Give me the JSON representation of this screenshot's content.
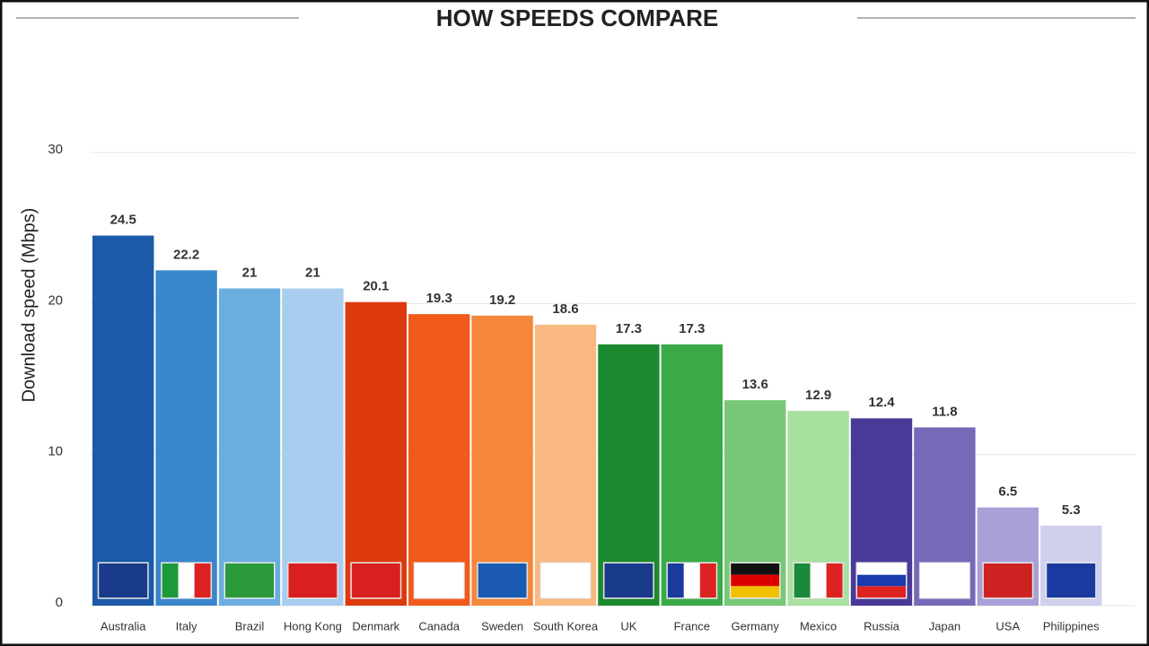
{
  "chart_data": {
    "type": "bar",
    "title": "HOW SPEEDS COMPARE",
    "y_label": "Download speed (Mbps)",
    "categories": [
      "Australia",
      "Italy",
      "Brazil",
      "Hong Kong",
      "Denmark",
      "Canada",
      "Sweden",
      "South Korea",
      "UK",
      "France",
      "Germany",
      "Mexico",
      "Russia",
      "Japan",
      "USA",
      "Philippines"
    ],
    "values": [
      24.5,
      22.2,
      21,
      21,
      20.1,
      19.3,
      19.2,
      18.6,
      17.3,
      17.3,
      13.6,
      12.9,
      12.4,
      11.8,
      6.5,
      5.3
    ],
    "colors": [
      "#1a5aa8",
      "#3a86cc",
      "#6aaee0",
      "#a8cdee",
      "#dd3a10",
      "#f05a1a",
      "#f5873a",
      "#f8b880",
      "#1c8a2e",
      "#3aaa48",
      "#78c878",
      "#a8e0a0",
      "#4a3a98",
      "#7868b8",
      "#a8a0d8",
      "#d0d0ee"
    ],
    "ylim": [
      0,
      30
    ],
    "yticks": [
      0,
      10,
      20,
      30
    ],
    "grid": true
  }
}
